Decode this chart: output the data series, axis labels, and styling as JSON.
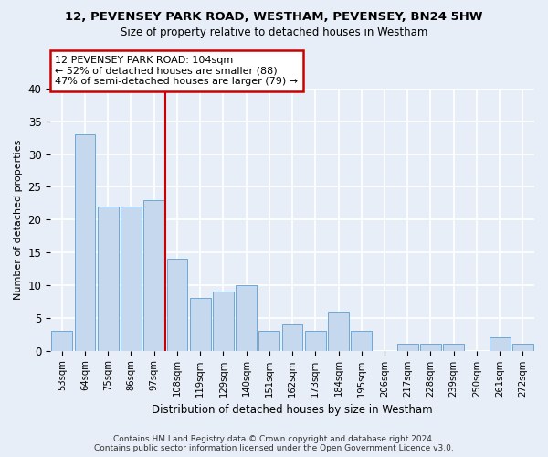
{
  "title1": "12, PEVENSEY PARK ROAD, WESTHAM, PEVENSEY, BN24 5HW",
  "title2": "Size of property relative to detached houses in Westham",
  "xlabel": "Distribution of detached houses by size in Westham",
  "ylabel": "Number of detached properties",
  "categories": [
    "53sqm",
    "64sqm",
    "75sqm",
    "86sqm",
    "97sqm",
    "108sqm",
    "119sqm",
    "129sqm",
    "140sqm",
    "151sqm",
    "162sqm",
    "173sqm",
    "184sqm",
    "195sqm",
    "206sqm",
    "217sqm",
    "228sqm",
    "239sqm",
    "250sqm",
    "261sqm",
    "272sqm"
  ],
  "values": [
    3,
    33,
    22,
    22,
    23,
    14,
    8,
    9,
    10,
    3,
    4,
    3,
    6,
    3,
    0,
    1,
    1,
    1,
    0,
    2,
    1
  ],
  "bar_color": "#c5d8ed",
  "bar_edge_color": "#5a9fd4",
  "vline_x": 4.5,
  "annotation_text": "12 PEVENSEY PARK ROAD: 104sqm\n← 52% of detached houses are smaller (88)\n47% of semi-detached houses are larger (79) →",
  "annotation_box_color": "#ffffff",
  "annotation_box_edge_color": "#cc0000",
  "vline_color": "#cc0000",
  "footer1": "Contains HM Land Registry data © Crown copyright and database right 2024.",
  "footer2": "Contains public sector information licensed under the Open Government Licence v3.0.",
  "ylim": [
    0,
    40
  ],
  "yticks": [
    0,
    5,
    10,
    15,
    20,
    25,
    30,
    35,
    40
  ],
  "background_color": "#e8eef7",
  "grid_color": "#ffffff"
}
